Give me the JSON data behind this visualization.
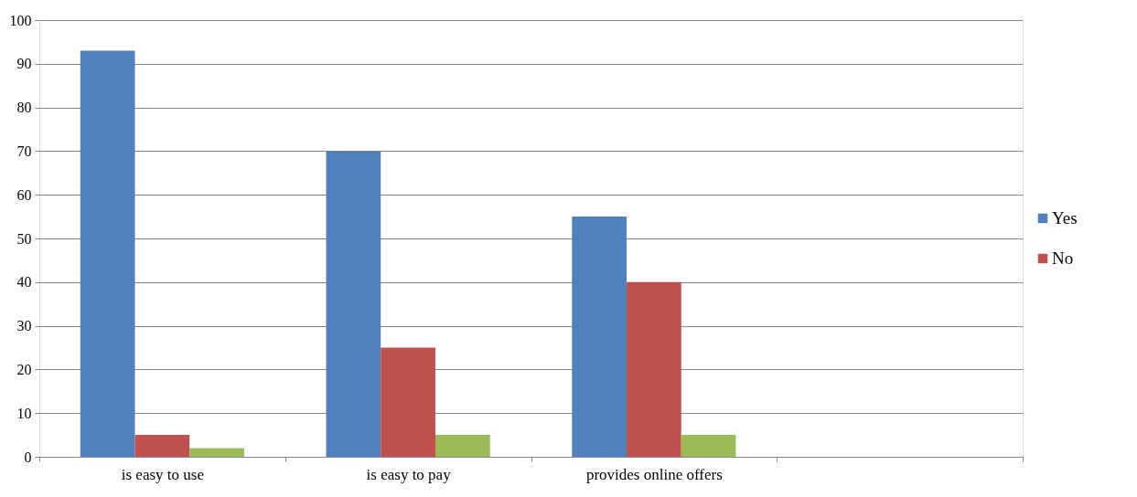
{
  "chart_data": {
    "type": "bar",
    "categories": [
      "is easy to use",
      "is easy to pay",
      "provides online offers",
      null
    ],
    "series": [
      {
        "name": "Yes",
        "color": "#4f81bd",
        "values": [
          93,
          70,
          55,
          null
        ]
      },
      {
        "name": "No",
        "color": "#c0504d",
        "values": [
          5,
          25,
          40,
          null
        ]
      },
      {
        "color": "#9bbb59",
        "values": [
          2,
          5,
          5,
          null
        ]
      }
    ],
    "ylim": [
      0,
      100
    ],
    "yticks": [
      0,
      10,
      20,
      30,
      40,
      50,
      60,
      70,
      80,
      90,
      100
    ],
    "grid": "y",
    "legend": "right"
  }
}
